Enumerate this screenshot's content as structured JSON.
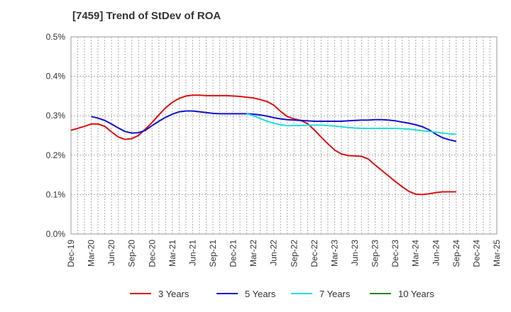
{
  "chart_data": {
    "type": "line",
    "title": "[7459]  Trend of StDev of ROA",
    "xlabel": "",
    "ylabel": "",
    "x_ticks": [
      "Dec-19",
      "Mar-20",
      "Jun-20",
      "Sep-20",
      "Dec-20",
      "Mar-21",
      "Jun-21",
      "Sep-21",
      "Dec-21",
      "Mar-22",
      "Jun-22",
      "Sep-22",
      "Dec-22",
      "Mar-23",
      "Jun-23",
      "Sep-23",
      "Dec-23",
      "Mar-24",
      "Jun-24",
      "Sep-24",
      "Dec-24",
      "Mar-25"
    ],
    "y_ticks": [
      "0.0%",
      "0.1%",
      "0.2%",
      "0.3%",
      "0.4%",
      "0.5%"
    ],
    "ylim": [
      0,
      0.5
    ],
    "grid": true,
    "legend_position": "bottom",
    "series": [
      {
        "name": "3 Years",
        "color": "#dd1111",
        "start_index": 0,
        "values": [
          0.263,
          0.268,
          0.273,
          0.279,
          0.279,
          0.273,
          0.259,
          0.246,
          0.24,
          0.242,
          0.25,
          0.266,
          0.283,
          0.302,
          0.32,
          0.334,
          0.344,
          0.35,
          0.352,
          0.352,
          0.351,
          0.351,
          0.351,
          0.351,
          0.35,
          0.349,
          0.347,
          0.345,
          0.341,
          0.336,
          0.327,
          0.311,
          0.298,
          0.292,
          0.288,
          0.28,
          0.264,
          0.246,
          0.229,
          0.213,
          0.203,
          0.199,
          0.198,
          0.197,
          0.19,
          0.175,
          0.161,
          0.147,
          0.133,
          0.12,
          0.108,
          0.101,
          0.1,
          0.102,
          0.105,
          0.107,
          0.107,
          0.107
        ]
      },
      {
        "name": "5 Years",
        "color": "#1111cc",
        "start_index": 3,
        "values": [
          0.298,
          0.294,
          0.288,
          0.279,
          0.269,
          0.26,
          0.256,
          0.257,
          0.263,
          0.275,
          0.286,
          0.296,
          0.304,
          0.31,
          0.312,
          0.312,
          0.31,
          0.308,
          0.306,
          0.305,
          0.305,
          0.305,
          0.305,
          0.305,
          0.304,
          0.302,
          0.299,
          0.295,
          0.292,
          0.29,
          0.289,
          0.288,
          0.287,
          0.286,
          0.286,
          0.286,
          0.286,
          0.286,
          0.287,
          0.288,
          0.289,
          0.289,
          0.29,
          0.29,
          0.289,
          0.287,
          0.284,
          0.281,
          0.277,
          0.272,
          0.264,
          0.253,
          0.244,
          0.239,
          0.235
        ]
      },
      {
        "name": "7 Years",
        "color": "#22dddd",
        "start_index": 26,
        "values": [
          0.305,
          0.3,
          0.293,
          0.286,
          0.281,
          0.277,
          0.275,
          0.275,
          0.275,
          0.276,
          0.276,
          0.276,
          0.275,
          0.274,
          0.272,
          0.27,
          0.269,
          0.268,
          0.268,
          0.268,
          0.268,
          0.268,
          0.268,
          0.267,
          0.266,
          0.264,
          0.262,
          0.26,
          0.258,
          0.256,
          0.254,
          0.253
        ]
      },
      {
        "name": "10 Years",
        "color": "#228822",
        "start_index": 0,
        "values": []
      }
    ]
  }
}
